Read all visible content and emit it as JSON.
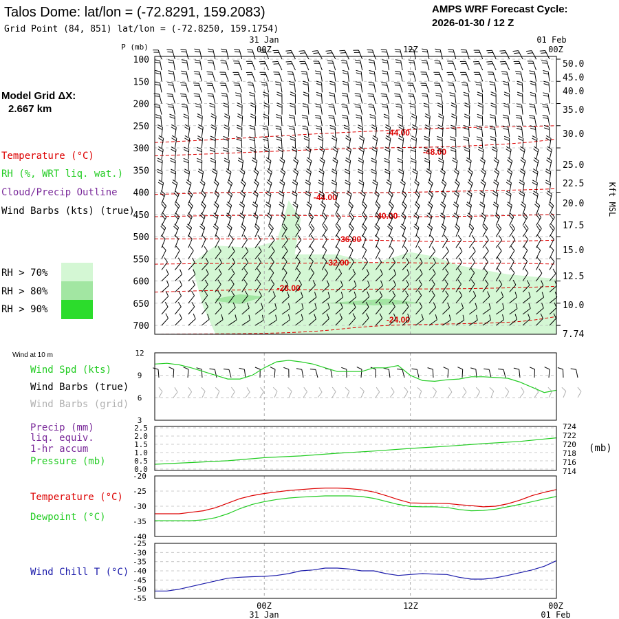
{
  "header": {
    "title": "Talos Dome:  lat/lon = (-72.8291, 159.2083)",
    "subtitle": "Grid Point (84, 851) lat/lon = (-72.8250, 159.1754)",
    "cycle_line1": "AMPS WRF Forecast Cycle:",
    "cycle_line2": "2026-01-30 / 12  Z"
  },
  "left_labels": {
    "model_grid_line1": "Model Grid ΔX:",
    "model_grid_line2": "2.667 km",
    "temperature": "Temperature (°C)",
    "rh": "RH (%, WRT liq. wat.)",
    "cloud": "Cloud/Precip Outline",
    "wind_barbs": "Wind Barbs (kts) (true)",
    "rh70": "RH > 70%",
    "rh80": "RH > 80%",
    "rh90": "RH > 90%",
    "wind_at_10m": "Wind at 10 m",
    "wind_spd": "Wind Spd (kts)",
    "wind_barbs_true": "Wind Barbs (true)",
    "wind_barbs_grid": "Wind Barbs (grid)",
    "precip_line1": "Precip (mm)",
    "precip_line2": "liq. equiv.",
    "precip_line3": "1-hr accum",
    "pressure": "Pressure (mb)",
    "temp2": "Temperature (°C)",
    "dewpoint": "Dewpoint (°C)",
    "windchill": "Wind Chill T (°C)",
    "mb_unit": "(mb)"
  },
  "colors": {
    "temperature": "#dd0000",
    "rh": "#22cc22",
    "cloud": "#7a2a9a",
    "windchill": "#1a1aaa",
    "grid_barb": "#b0b0b0",
    "rh70": "#d4f7d4",
    "rh80": "#a2e6a2",
    "rh90": "#2cdc2c"
  },
  "chart_data": [
    {
      "type": "time-height cross section",
      "time_top_labels": [
        "31  Jan",
        "00Z",
        "12Z",
        "01  Feb",
        "00Z"
      ],
      "time_bottom_labels": [
        "00Z",
        "31  Jan",
        "12Z",
        "00Z",
        "01  Feb"
      ],
      "ylabel_left": "P (mb)",
      "ylabel_right": "Kft MSL",
      "pressure_ticks": [
        "100",
        "150",
        "200",
        "250",
        "300",
        "350",
        "400",
        "450",
        "500",
        "550",
        "600",
        "650",
        "700"
      ],
      "kft_ticks": [
        "50.0",
        "45.0",
        "40.0",
        "35.0",
        "30.0",
        "25.0",
        "22.5",
        "20.0",
        "17.5",
        "15.0",
        "12.5",
        "10.0",
        "7.74"
      ],
      "xlim_hours": [
        -9,
        24
      ],
      "ylim_mb": [
        100,
        720
      ],
      "temperature_contour_labels": [
        "-44.00",
        "-48.00",
        "-44.00",
        "-40.00",
        "-36.00",
        "-32.00",
        "-28.00",
        "-24.00"
      ],
      "temperature_contours": [
        {
          "level": -44,
          "label": "-44.00",
          "points": [
            [
              -9,
              288
            ],
            [
              -3,
              280
            ],
            [
              3,
              270
            ],
            [
              9,
              262
            ],
            [
              15,
              255
            ],
            [
              21,
              252
            ],
            [
              24,
              250
            ]
          ]
        },
        {
          "level": -48,
          "label": "-48.00",
          "points": [
            [
              -9,
              318
            ],
            [
              -3,
              312
            ],
            [
              3,
              305
            ],
            [
              9,
              300
            ],
            [
              15,
              298
            ],
            [
              21,
              290
            ],
            [
              24,
              280
            ]
          ]
        },
        {
          "level": -44,
          "label": "-44.00",
          "points": [
            [
              -9,
              405
            ],
            [
              -3,
              400
            ],
            [
              3,
              400
            ],
            [
              9,
              402
            ],
            [
              15,
              398
            ],
            [
              21,
              395
            ],
            [
              24,
              392
            ]
          ]
        },
        {
          "level": -40,
          "label": "-40.00",
          "points": [
            [
              -9,
              455
            ],
            [
              -3,
              452
            ],
            [
              3,
              452
            ],
            [
              9,
              455
            ],
            [
              15,
              455
            ],
            [
              21,
              452
            ],
            [
              24,
              450
            ]
          ]
        },
        {
          "level": -36,
          "label": "-36.00",
          "points": [
            [
              -9,
              505
            ],
            [
              -3,
              505
            ],
            [
              3,
              505
            ],
            [
              9,
              508
            ],
            [
              15,
              512
            ],
            [
              21,
              510
            ],
            [
              24,
              508
            ]
          ]
        },
        {
          "level": -32,
          "label": "-32.00",
          "points": [
            [
              -9,
              562
            ],
            [
              -3,
              560
            ],
            [
              3,
              560
            ],
            [
              9,
              558
            ],
            [
              15,
              560
            ],
            [
              21,
              560
            ],
            [
              24,
              562
            ]
          ]
        },
        {
          "level": -28,
          "label": "-28.00",
          "points": [
            [
              -9,
              625
            ],
            [
              -3,
              620
            ],
            [
              3,
              620
            ],
            [
              9,
              618
            ],
            [
              15,
              618
            ],
            [
              21,
              615
            ],
            [
              24,
              612
            ]
          ]
        },
        {
          "level": -24,
          "label": "-24.00",
          "points": [
            [
              -9,
              720
            ],
            [
              3,
              718
            ],
            [
              9,
              700
            ],
            [
              15,
              697
            ],
            [
              21,
              693
            ],
            [
              24,
              680
            ]
          ]
        }
      ],
      "rh_regions": [
        {
          "category": "RH > 70%",
          "polygon": [
            [
              -4,
              720
            ],
            [
              -5,
              660
            ],
            [
              -6,
              560
            ],
            [
              -4,
              520
            ],
            [
              -1,
              525
            ],
            [
              1,
              510
            ],
            [
              1.5,
              470
            ],
            [
              2,
              418
            ],
            [
              3,
              460
            ],
            [
              2.5,
              540
            ],
            [
              6,
              540
            ],
            [
              9,
              560
            ],
            [
              12,
              535
            ],
            [
              14,
              545
            ],
            [
              16,
              565
            ],
            [
              20,
              585
            ],
            [
              24,
              595
            ],
            [
              24,
              720
            ]
          ]
        },
        {
          "category": "RH > 80%",
          "polygon": [
            [
              -4,
              640
            ],
            [
              -2,
              630
            ],
            [
              0,
              635
            ],
            [
              -2,
              652
            ],
            [
              -4,
              645
            ]
          ]
        },
        {
          "category": "RH > 80%",
          "polygon": [
            [
              5,
              650
            ],
            [
              10,
              640
            ],
            [
              13,
              650
            ],
            [
              9,
              655
            ]
          ]
        }
      ]
    },
    {
      "type": "line",
      "title": "Wind at 10 m",
      "x_hours": [
        -9,
        -8,
        -7,
        -6,
        -5,
        -4,
        -3,
        -2,
        -1,
        0,
        1,
        2,
        3,
        4,
        5,
        6,
        7,
        8,
        9,
        10,
        11,
        12,
        13,
        14,
        15,
        16,
        17,
        18,
        19,
        20,
        21,
        22,
        23,
        24
      ],
      "series": [
        {
          "name": "Wind Spd (kts)",
          "values": [
            10.5,
            10.6,
            10.4,
            10,
            9.5,
            9,
            8.5,
            8.5,
            9,
            10,
            10.8,
            11,
            10.8,
            10.5,
            10,
            9.5,
            9.5,
            9.5,
            10,
            10,
            10.3,
            9,
            8.3,
            8.2,
            8.4,
            8.5,
            8.8,
            8.8,
            8.7,
            8.6,
            8.1,
            7.4,
            6.7,
            7
          ]
        }
      ],
      "ylim": [
        3,
        12
      ],
      "yticks": [
        "12",
        "9",
        "6",
        "3"
      ]
    },
    {
      "type": "line",
      "x_hours": [
        -9,
        -6,
        -3,
        0,
        3,
        6,
        9,
        12,
        15,
        18,
        21,
        24
      ],
      "precip_ticks": [
        "2.5",
        "2.0",
        "1.5",
        "1.0",
        "0.5",
        "0.0"
      ],
      "pressure_ticks": [
        "724",
        "722",
        "720",
        "718",
        "716",
        "714"
      ],
      "series": [
        {
          "name": "Pressure (mb)",
          "values": [
            715.4,
            715.8,
            716.2,
            716.9,
            717.3,
            717.9,
            718.4,
            719.0,
            719.5,
            720.1,
            720.6,
            721.4
          ]
        }
      ],
      "precip_ylim": [
        0,
        2.5
      ],
      "pressure_ylim": [
        714,
        724
      ]
    },
    {
      "type": "line",
      "x_hours": [
        -9,
        -8,
        -7,
        -6,
        -5,
        -4,
        -3,
        -2,
        -1,
        0,
        1,
        2,
        3,
        4,
        5,
        6,
        7,
        8,
        9,
        10,
        11,
        12,
        13,
        14,
        15,
        16,
        17,
        18,
        19,
        20,
        21,
        22,
        23,
        24
      ],
      "series": [
        {
          "name": "Temperature (°C)",
          "values": [
            -32.5,
            -32.5,
            -32.5,
            -32,
            -31.5,
            -30.5,
            -29,
            -27.5,
            -26.5,
            -25.8,
            -25.3,
            -24.8,
            -24.5,
            -24.2,
            -24,
            -24,
            -24.2,
            -24.6,
            -25.3,
            -26.5,
            -27.8,
            -28.9,
            -29,
            -29,
            -29.1,
            -29.5,
            -29.8,
            -30.2,
            -30,
            -29.2,
            -28,
            -26.5,
            -25.4,
            -24.5
          ]
        },
        {
          "name": "Dewpoint (°C)",
          "values": [
            -34.8,
            -34.8,
            -34.8,
            -34.8,
            -34.5,
            -33.8,
            -32.5,
            -30.8,
            -29.4,
            -28.5,
            -27.8,
            -27.3,
            -27,
            -26.8,
            -26.6,
            -26.6,
            -26.6,
            -26.8,
            -27.4,
            -28.4,
            -29.4,
            -30.1,
            -30.2,
            -30.2,
            -30.4,
            -31.1,
            -31.5,
            -31.4,
            -31,
            -30.2,
            -29.4,
            -28.5,
            -27.6,
            -26.8
          ]
        }
      ],
      "ylim": [
        -40,
        -20
      ],
      "yticks": [
        "-20",
        "-25",
        "-30",
        "-35",
        "-40"
      ]
    },
    {
      "type": "line",
      "x_hours": [
        -9,
        -8,
        -7,
        -6,
        -5,
        -4,
        -3,
        -2,
        -1,
        0,
        1,
        2,
        3,
        4,
        5,
        6,
        7,
        8,
        9,
        10,
        11,
        12,
        13,
        14,
        15,
        16,
        17,
        18,
        19,
        20,
        21,
        22,
        23,
        24
      ],
      "series": [
        {
          "name": "Wind Chill T (°C)",
          "values": [
            -51,
            -51,
            -50,
            -48.5,
            -47,
            -45.5,
            -44,
            -43.5,
            -43.2,
            -43,
            -42.5,
            -41.5,
            -40,
            -39.5,
            -38.5,
            -38.5,
            -39,
            -40,
            -40,
            -41.5,
            -42.5,
            -42,
            -41.5,
            -41.8,
            -42,
            -43.5,
            -44.5,
            -44.5,
            -43.8,
            -42.5,
            -41,
            -39.5,
            -37.5,
            -34.5
          ]
        }
      ],
      "ylim": [
        -55,
        -25
      ],
      "yticks": [
        "-25",
        "-30",
        "-35",
        "-40",
        "-45",
        "-50",
        "-55"
      ]
    }
  ]
}
